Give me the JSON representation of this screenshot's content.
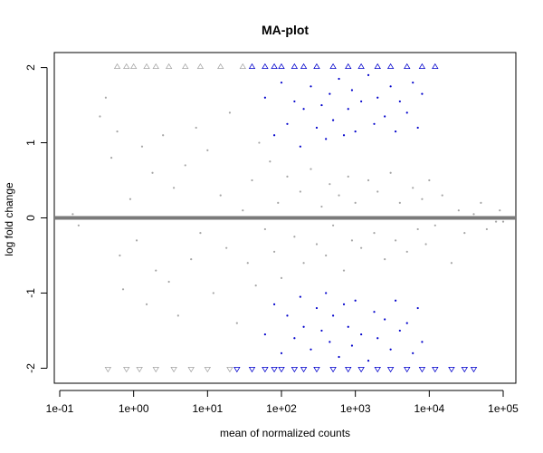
{
  "chart_data": {
    "type": "scatter",
    "title": "MA-plot",
    "xlabel": "mean of normalized counts",
    "ylabel": "log fold change",
    "x_scale": "log10",
    "xlim": [
      0.1,
      100000
    ],
    "ylim": [
      -2.2,
      2.2
    ],
    "x_ticks": [
      0.1,
      1,
      10,
      100,
      1000,
      10000,
      100000
    ],
    "x_tick_labels": [
      "1e-01",
      "1e+00",
      "1e+01",
      "1e+02",
      "1e+03",
      "1e+04",
      "1e+05"
    ],
    "y_ticks": [
      -2,
      -1,
      0,
      1,
      2
    ],
    "y_tick_labels": [
      "-2",
      "-1",
      "0",
      "1",
      "2"
    ],
    "reference_line": {
      "y": 0,
      "color": "#7a7a7a"
    },
    "grid": false,
    "legend": null,
    "series": [
      {
        "color": "#a6a6a6",
        "description_visible": false,
        "points": [
          [
            0.15,
            0.05
          ],
          [
            0.18,
            -0.1
          ],
          [
            0.35,
            1.35
          ],
          [
            0.42,
            1.6
          ],
          [
            0.5,
            0.8
          ],
          [
            0.6,
            1.15
          ],
          [
            0.65,
            -0.5
          ],
          [
            0.72,
            -0.95
          ],
          [
            0.9,
            0.25
          ],
          [
            1.1,
            -0.3
          ],
          [
            1.3,
            0.95
          ],
          [
            1.5,
            -1.15
          ],
          [
            1.8,
            0.6
          ],
          [
            2.0,
            -0.7
          ],
          [
            2.5,
            1.1
          ],
          [
            3.0,
            -0.85
          ],
          [
            3.5,
            0.4
          ],
          [
            4.0,
            -1.3
          ],
          [
            5.0,
            0.7
          ],
          [
            6.0,
            -0.55
          ],
          [
            7.0,
            1.2
          ],
          [
            8.0,
            -0.2
          ],
          [
            10,
            0.9
          ],
          [
            12,
            -1.0
          ],
          [
            15,
            0.3
          ],
          [
            18,
            -0.4
          ],
          [
            20,
            1.4
          ],
          [
            25,
            -1.4
          ],
          [
            30,
            0.1
          ],
          [
            35,
            -0.6
          ],
          [
            40,
            0.5
          ],
          [
            45,
            -0.9
          ],
          [
            50,
            1.0
          ],
          [
            60,
            -0.15
          ],
          [
            70,
            0.75
          ],
          [
            80,
            -0.45
          ],
          [
            90,
            0.2
          ],
          [
            100,
            -0.8
          ],
          [
            120,
            0.55
          ],
          [
            150,
            -0.25
          ],
          [
            180,
            0.35
          ],
          [
            200,
            -0.6
          ],
          [
            250,
            0.65
          ],
          [
            300,
            -0.35
          ],
          [
            350,
            0.15
          ],
          [
            400,
            -0.5
          ],
          [
            450,
            0.45
          ],
          [
            500,
            -0.1
          ],
          [
            600,
            0.3
          ],
          [
            700,
            -0.7
          ],
          [
            800,
            0.55
          ],
          [
            900,
            -0.3
          ],
          [
            1000,
            0.2
          ],
          [
            1200,
            -0.4
          ],
          [
            1500,
            0.5
          ],
          [
            1800,
            -0.2
          ],
          [
            2000,
            0.35
          ],
          [
            2500,
            -0.55
          ],
          [
            3000,
            0.6
          ],
          [
            3500,
            -0.3
          ],
          [
            4000,
            0.2
          ],
          [
            5000,
            -0.45
          ],
          [
            6000,
            0.4
          ],
          [
            7000,
            -0.15
          ],
          [
            8000,
            0.25
          ],
          [
            9000,
            -0.35
          ],
          [
            10000,
            0.5
          ],
          [
            12000,
            -0.1
          ],
          [
            15000,
            0.3
          ],
          [
            20000,
            -0.6
          ],
          [
            25000,
            0.1
          ],
          [
            30000,
            -0.2
          ],
          [
            40000,
            0.05
          ],
          [
            50000,
            0.2
          ],
          [
            60000,
            -0.15
          ],
          [
            70000,
            0.0
          ],
          [
            80000,
            -0.05
          ],
          [
            90000,
            0.1
          ],
          [
            100000,
            -0.05
          ]
        ]
      },
      {
        "color": "#0000cc",
        "description_visible": false,
        "points": [
          [
            60,
            1.6
          ],
          [
            80,
            1.1
          ],
          [
            100,
            1.8
          ],
          [
            120,
            1.25
          ],
          [
            150,
            1.55
          ],
          [
            180,
            0.95
          ],
          [
            200,
            1.45
          ],
          [
            250,
            1.75
          ],
          [
            300,
            1.2
          ],
          [
            350,
            1.5
          ],
          [
            400,
            1.05
          ],
          [
            450,
            1.65
          ],
          [
            500,
            1.3
          ],
          [
            600,
            1.85
          ],
          [
            700,
            1.1
          ],
          [
            800,
            1.45
          ],
          [
            900,
            1.7
          ],
          [
            1000,
            1.15
          ],
          [
            1200,
            1.55
          ],
          [
            1500,
            1.9
          ],
          [
            1800,
            1.25
          ],
          [
            2000,
            1.6
          ],
          [
            2500,
            1.35
          ],
          [
            3000,
            1.75
          ],
          [
            3500,
            1.15
          ],
          [
            4000,
            1.55
          ],
          [
            5000,
            1.4
          ],
          [
            6000,
            1.8
          ],
          [
            7000,
            1.2
          ],
          [
            8000,
            1.65
          ],
          [
            60,
            -1.55
          ],
          [
            80,
            -1.15
          ],
          [
            100,
            -1.8
          ],
          [
            120,
            -1.3
          ],
          [
            150,
            -1.6
          ],
          [
            180,
            -1.05
          ],
          [
            200,
            -1.45
          ],
          [
            250,
            -1.75
          ],
          [
            300,
            -1.2
          ],
          [
            350,
            -1.5
          ],
          [
            400,
            -1.0
          ],
          [
            450,
            -1.65
          ],
          [
            500,
            -1.3
          ],
          [
            600,
            -1.85
          ],
          [
            700,
            -1.15
          ],
          [
            800,
            -1.45
          ],
          [
            900,
            -1.7
          ],
          [
            1000,
            -1.1
          ],
          [
            1200,
            -1.55
          ],
          [
            1500,
            -1.9
          ],
          [
            1800,
            -1.25
          ],
          [
            2000,
            -1.6
          ],
          [
            2500,
            -1.35
          ],
          [
            3000,
            -1.75
          ],
          [
            3500,
            -1.1
          ],
          [
            4000,
            -1.5
          ],
          [
            5000,
            -1.4
          ],
          [
            6000,
            -1.8
          ],
          [
            7000,
            -1.2
          ],
          [
            8000,
            -1.65
          ]
        ]
      }
    ],
    "clipped_markers": {
      "top": {
        "y": 2,
        "gray_x": [
          0.6,
          0.8,
          1.0,
          1.5,
          2.0,
          3.0,
          5.0,
          8.0,
          15,
          30
        ],
        "blue_x": [
          40,
          60,
          80,
          100,
          150,
          200,
          300,
          500,
          800,
          1200,
          2000,
          3000,
          5000,
          8000,
          12000
        ]
      },
      "bottom": {
        "y": -2,
        "gray_x": [
          0.45,
          0.8,
          1.2,
          2.0,
          3.5,
          6.0,
          10,
          20
        ],
        "blue_x": [
          25,
          40,
          60,
          80,
          100,
          150,
          200,
          300,
          500,
          800,
          1200,
          2000,
          3000,
          5000,
          8000,
          12000,
          20000,
          30000,
          40000
        ]
      }
    }
  }
}
